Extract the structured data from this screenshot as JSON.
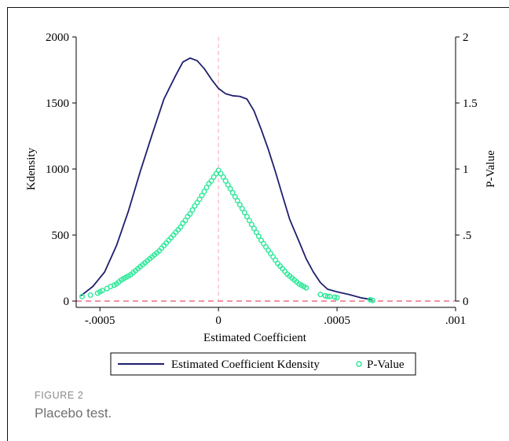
{
  "figure": {
    "label": "FIGURE 2",
    "caption": "Placebo test."
  },
  "chart_data": {
    "type": "line",
    "xlabel": "Estimated Coefficient",
    "ylabel_left": "Kdensity",
    "ylabel_right": "P-Value",
    "xlim": [
      -0.0006,
      0.001
    ],
    "ylim_left": [
      0,
      2000
    ],
    "ylim_right": [
      0,
      2
    ],
    "x_ticks": [
      {
        "value": -0.0005,
        "label": "-.0005"
      },
      {
        "value": 0,
        "label": "0"
      },
      {
        "value": 0.0005,
        "label": ".0005"
      },
      {
        "value": 0.001,
        "label": ".001"
      }
    ],
    "y_ticks_left": [
      {
        "value": 0,
        "label": "0"
      },
      {
        "value": 500,
        "label": "500"
      },
      {
        "value": 1000,
        "label": "1000"
      },
      {
        "value": 1500,
        "label": "1500"
      },
      {
        "value": 2000,
        "label": "2000"
      }
    ],
    "y_ticks_right": [
      {
        "value": 0,
        "label": "0"
      },
      {
        "value": 0.5,
        "label": ".5"
      },
      {
        "value": 1,
        "label": "1"
      },
      {
        "value": 1.5,
        "label": "1.5"
      },
      {
        "value": 2,
        "label": "2"
      }
    ],
    "reference_lines": [
      {
        "orientation": "vertical",
        "value": 0,
        "color": "#f4a6b8"
      },
      {
        "orientation": "horizontal",
        "value": 0,
        "color": "#e8506a"
      }
    ],
    "series": [
      {
        "name": "Estimated Coefficient Kdensity",
        "kind": "line",
        "axis": "left",
        "color": "#1f1f6e",
        "points": [
          [
            -0.00058,
            40
          ],
          [
            -0.00053,
            110
          ],
          [
            -0.00048,
            220
          ],
          [
            -0.00043,
            420
          ],
          [
            -0.00038,
            680
          ],
          [
            -0.00033,
            980
          ],
          [
            -0.00028,
            1260
          ],
          [
            -0.00023,
            1530
          ],
          [
            -0.00018,
            1710
          ],
          [
            -0.00015,
            1810
          ],
          [
            -0.00012,
            1840
          ],
          [
            -9e-05,
            1820
          ],
          [
            -6e-05,
            1760
          ],
          [
            -3e-05,
            1680
          ],
          [
            0.0,
            1610
          ],
          [
            3e-05,
            1570
          ],
          [
            6e-05,
            1555
          ],
          [
            9e-05,
            1550
          ],
          [
            0.00012,
            1530
          ],
          [
            0.00015,
            1440
          ],
          [
            0.00018,
            1300
          ],
          [
            0.00021,
            1150
          ],
          [
            0.00024,
            980
          ],
          [
            0.00027,
            800
          ],
          [
            0.0003,
            620
          ],
          [
            0.00034,
            450
          ],
          [
            0.00037,
            320
          ],
          [
            0.0004,
            220
          ],
          [
            0.00043,
            140
          ],
          [
            0.00046,
            90
          ],
          [
            0.0005,
            70
          ],
          [
            0.00055,
            50
          ],
          [
            0.0006,
            25
          ],
          [
            0.00065,
            10
          ]
        ]
      },
      {
        "name": "P-Value",
        "kind": "scatter",
        "axis": "right",
        "color": "#2ee89a",
        "points": [
          [
            -0.000575,
            0.035
          ],
          [
            -0.00054,
            0.045
          ],
          [
            -0.00051,
            0.06
          ],
          [
            -0.0005,
            0.07
          ],
          [
            -0.00049,
            0.08
          ],
          [
            -0.00047,
            0.095
          ],
          [
            -0.000455,
            0.11
          ],
          [
            -0.00044,
            0.12
          ],
          [
            -0.00043,
            0.13
          ],
          [
            -0.00042,
            0.145
          ],
          [
            -0.00041,
            0.16
          ],
          [
            -0.0004,
            0.17
          ],
          [
            -0.00039,
            0.18
          ],
          [
            -0.00038,
            0.19
          ],
          [
            -0.00037,
            0.2
          ],
          [
            -0.00036,
            0.215
          ],
          [
            -0.00035,
            0.23
          ],
          [
            -0.00034,
            0.245
          ],
          [
            -0.00033,
            0.26
          ],
          [
            -0.00032,
            0.275
          ],
          [
            -0.00031,
            0.29
          ],
          [
            -0.0003,
            0.305
          ],
          [
            -0.00029,
            0.32
          ],
          [
            -0.00028,
            0.335
          ],
          [
            -0.00027,
            0.35
          ],
          [
            -0.00026,
            0.365
          ],
          [
            -0.00025,
            0.38
          ],
          [
            -0.00024,
            0.4
          ],
          [
            -0.00023,
            0.42
          ],
          [
            -0.00022,
            0.44
          ],
          [
            -0.00021,
            0.46
          ],
          [
            -0.0002,
            0.48
          ],
          [
            -0.00019,
            0.5
          ],
          [
            -0.00018,
            0.52
          ],
          [
            -0.00017,
            0.54
          ],
          [
            -0.00016,
            0.56
          ],
          [
            -0.00015,
            0.59
          ],
          [
            -0.00014,
            0.61
          ],
          [
            -0.00013,
            0.64
          ],
          [
            -0.00012,
            0.66
          ],
          [
            -0.00011,
            0.69
          ],
          [
            -0.0001,
            0.72
          ],
          [
            -9e-05,
            0.745
          ],
          [
            -8e-05,
            0.77
          ],
          [
            -7e-05,
            0.8
          ],
          [
            -6e-05,
            0.83
          ],
          [
            -5e-05,
            0.86
          ],
          [
            -4e-05,
            0.89
          ],
          [
            -3e-05,
            0.91
          ],
          [
            -2e-05,
            0.94
          ],
          [
            -1e-05,
            0.965
          ],
          [
            0.0,
            0.99
          ],
          [
            1e-05,
            0.965
          ],
          [
            2e-05,
            0.94
          ],
          [
            3e-05,
            0.91
          ],
          [
            4e-05,
            0.88
          ],
          [
            5e-05,
            0.85
          ],
          [
            6e-05,
            0.82
          ],
          [
            7e-05,
            0.79
          ],
          [
            8e-05,
            0.76
          ],
          [
            9e-05,
            0.73
          ],
          [
            0.0001,
            0.7
          ],
          [
            0.00011,
            0.67
          ],
          [
            0.00012,
            0.64
          ],
          [
            0.00013,
            0.61
          ],
          [
            0.00014,
            0.58
          ],
          [
            0.00015,
            0.55
          ],
          [
            0.00016,
            0.52
          ],
          [
            0.00017,
            0.49
          ],
          [
            0.00018,
            0.46
          ],
          [
            0.00019,
            0.435
          ],
          [
            0.0002,
            0.41
          ],
          [
            0.00021,
            0.385
          ],
          [
            0.00022,
            0.36
          ],
          [
            0.00023,
            0.335
          ],
          [
            0.00024,
            0.31
          ],
          [
            0.00025,
            0.285
          ],
          [
            0.00026,
            0.265
          ],
          [
            0.00027,
            0.245
          ],
          [
            0.00028,
            0.225
          ],
          [
            0.00029,
            0.205
          ],
          [
            0.0003,
            0.19
          ],
          [
            0.00031,
            0.175
          ],
          [
            0.00032,
            0.16
          ],
          [
            0.00033,
            0.145
          ],
          [
            0.00034,
            0.13
          ],
          [
            0.00035,
            0.12
          ],
          [
            0.00036,
            0.11
          ],
          [
            0.00037,
            0.1
          ],
          [
            0.00043,
            0.05
          ],
          [
            0.00045,
            0.04
          ],
          [
            0.00046,
            0.035
          ],
          [
            0.00047,
            0.035
          ],
          [
            0.00049,
            0.03
          ],
          [
            0.0005,
            0.025
          ],
          [
            0.00064,
            0.01
          ],
          [
            0.00065,
            0.005
          ]
        ]
      }
    ],
    "legend": {
      "position": "bottom",
      "items": [
        "Estimated Coefficient Kdensity",
        "P-Value"
      ]
    }
  }
}
